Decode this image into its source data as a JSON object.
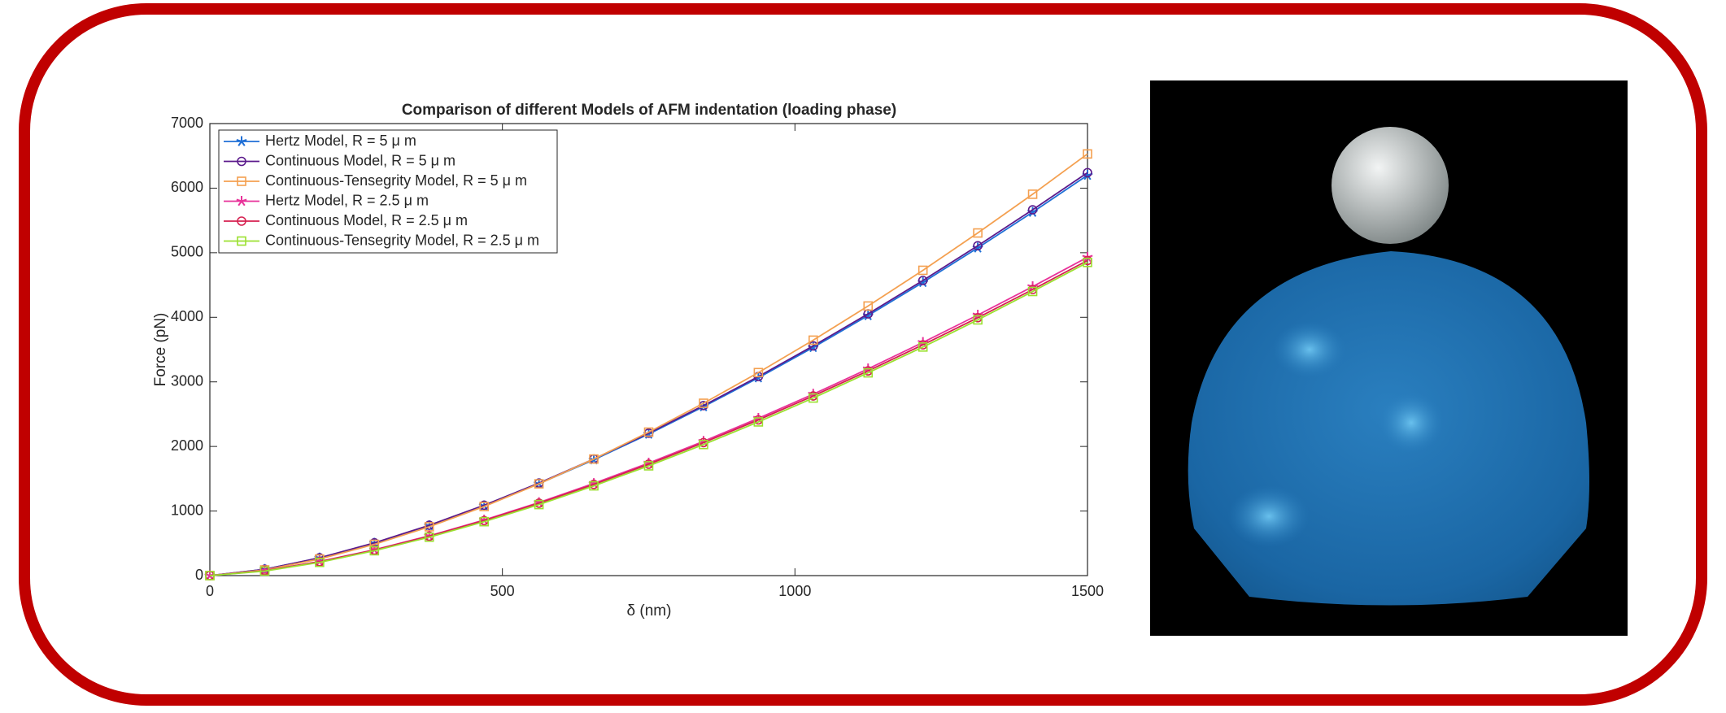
{
  "chart_data": {
    "type": "line",
    "title": "Comparison of different Models of AFM indentation (loading phase)",
    "xlabel": "δ (nm)",
    "ylabel": "Force (pN)",
    "x": [
      0,
      93.75,
      187.5,
      281.25,
      375,
      468.75,
      562.5,
      656.25,
      750,
      843.75,
      937.5,
      1031.25,
      1125,
      1218.75,
      1312.5,
      1406.25,
      1500
    ],
    "xlim": [
      0,
      1500
    ],
    "xticks": [
      0,
      500,
      1000,
      1500
    ],
    "ylim": [
      0,
      7000
    ],
    "yticks": [
      0,
      1000,
      2000,
      3000,
      4000,
      5000,
      6000,
      7000
    ],
    "grid": false,
    "legend": "northwest",
    "series": [
      {
        "name": "Hertz Model, R = 5 μ m",
        "color": "#1f6fd6",
        "marker": "star",
        "values": [
          0,
          97,
          274,
          503,
          775,
          1083,
          1424,
          1794,
          2192,
          2616,
          3063,
          3534,
          4027,
          4541,
          5075,
          5628,
          6200
        ]
      },
      {
        "name": "Continuous Model, R = 5 μ m",
        "color": "#5b1a8c",
        "marker": "circle",
        "values": [
          0,
          98,
          276,
          507,
          780,
          1090,
          1433,
          1806,
          2206,
          2633,
          3083,
          3557,
          4053,
          4570,
          5108,
          5665,
          6240
        ]
      },
      {
        "name": "Continuous-Tensegrity Model, R = 5 μ m",
        "color": "#f4a050",
        "marker": "square",
        "values": [
          0,
          88,
          257,
          484,
          756,
          1070,
          1421,
          1805,
          2222,
          2669,
          3144,
          3646,
          4175,
          4728,
          5306,
          5906,
          6530
        ]
      },
      {
        "name": "Hertz Model, R = 2.5 μ m",
        "color": "#e8339a",
        "marker": "star",
        "values": [
          0,
          77,
          218,
          400,
          616,
          861,
          1132,
          1427,
          1743,
          2080,
          2436,
          2810,
          3202,
          3611,
          4035,
          4475,
          4930
        ]
      },
      {
        "name": "Continuous Model, R = 2.5 μ m",
        "color": "#d62050",
        "marker": "circle",
        "values": [
          0,
          76,
          216,
          396,
          610,
          852,
          1121,
          1412,
          1725,
          2059,
          2411,
          2782,
          3170,
          3574,
          3994,
          4430,
          4880
        ]
      },
      {
        "name": "Continuous-Tensegrity Model, R = 2.5 μ m",
        "color": "#9be030",
        "marker": "square",
        "values": [
          0,
          70,
          205,
          385,
          595,
          835,
          1100,
          1390,
          1700,
          2030,
          2380,
          2750,
          3140,
          3540,
          3960,
          4400,
          4850
        ]
      }
    ]
  }
}
